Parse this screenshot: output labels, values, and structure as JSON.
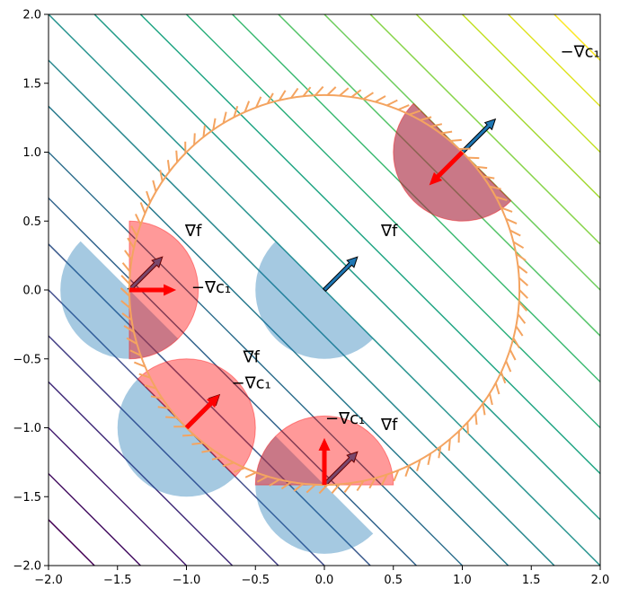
{
  "chart_data": {
    "type": "contour",
    "xlim": [
      -2,
      2
    ],
    "ylim": [
      -2,
      2
    ],
    "xticks": [
      "−2.0",
      "−1.5",
      "−1.0",
      "−0.5",
      "0.0",
      "0.5",
      "1.0",
      "1.5",
      "2.0"
    ],
    "yticks": [
      "−2.0",
      "−1.5",
      "−1.0",
      "−0.5",
      "0.0",
      "0.5",
      "1.0",
      "1.5",
      "2.0"
    ],
    "xtick_values": [
      -2,
      -1.5,
      -1,
      -0.5,
      0,
      0.5,
      1,
      1.5,
      2
    ],
    "ytick_values": [
      -2,
      -1.5,
      -1,
      -0.5,
      0,
      0.5,
      1,
      1.5,
      2
    ],
    "grid": false,
    "contour": {
      "function": "x + y",
      "colormap": "viridis",
      "levels": [
        -3.667,
        -3.333,
        -3.0,
        -2.667,
        -2.333,
        -2.0,
        -1.667,
        -1.333,
        -1.0,
        -0.667,
        -0.333,
        0.0,
        0.333,
        0.667,
        1.0,
        1.333,
        1.667,
        2.0,
        2.333,
        2.667,
        3.0,
        3.333,
        3.667
      ]
    },
    "constraint": {
      "shape": "circle",
      "center": [
        0,
        0
      ],
      "radius": 1.4142,
      "color": "#f4a460",
      "hatched": true
    },
    "disk_radius": 0.5,
    "colors": {
      "grad_f_region": "#1f77b4",
      "neg_grad_c1_region": "#ff0000",
      "grad_f_arrow": "#1f77b4",
      "neg_grad_c1_arrow": "#ff0000"
    },
    "points": [
      {
        "xy": [
          1.0,
          1.0
        ],
        "grad_f": [
          0.24,
          0.24
        ],
        "neg_grad_c1": [
          -0.24,
          -0.24
        ],
        "show_c1": true,
        "label_f": "∇f",
        "label_c1": "−∇c₁"
      },
      {
        "xy": [
          0.0,
          0.0
        ],
        "grad_f": [
          0.24,
          0.24
        ],
        "neg_grad_c1": null,
        "show_c1": false,
        "label_f": "∇f",
        "label_c1": ""
      },
      {
        "xy": [
          -1.4142,
          0.0
        ],
        "grad_f": [
          0.24,
          0.24
        ],
        "neg_grad_c1": [
          0.34,
          0.0
        ],
        "show_c1": true,
        "label_f": "∇f",
        "label_c1": "−∇c₁"
      },
      {
        "xy": [
          -1.0,
          -1.0
        ],
        "grad_f": [
          0.24,
          0.24
        ],
        "neg_grad_c1": [
          0.24,
          0.24
        ],
        "show_c1": true,
        "label_f": "∇f",
        "label_c1": "−∇c₁"
      },
      {
        "xy": [
          0.0,
          -1.4142
        ],
        "grad_f": [
          0.24,
          0.24
        ],
        "neg_grad_c1": [
          0.0,
          0.34
        ],
        "show_c1": true,
        "label_f": "∇f",
        "label_c1": "−∇c₁"
      }
    ]
  }
}
